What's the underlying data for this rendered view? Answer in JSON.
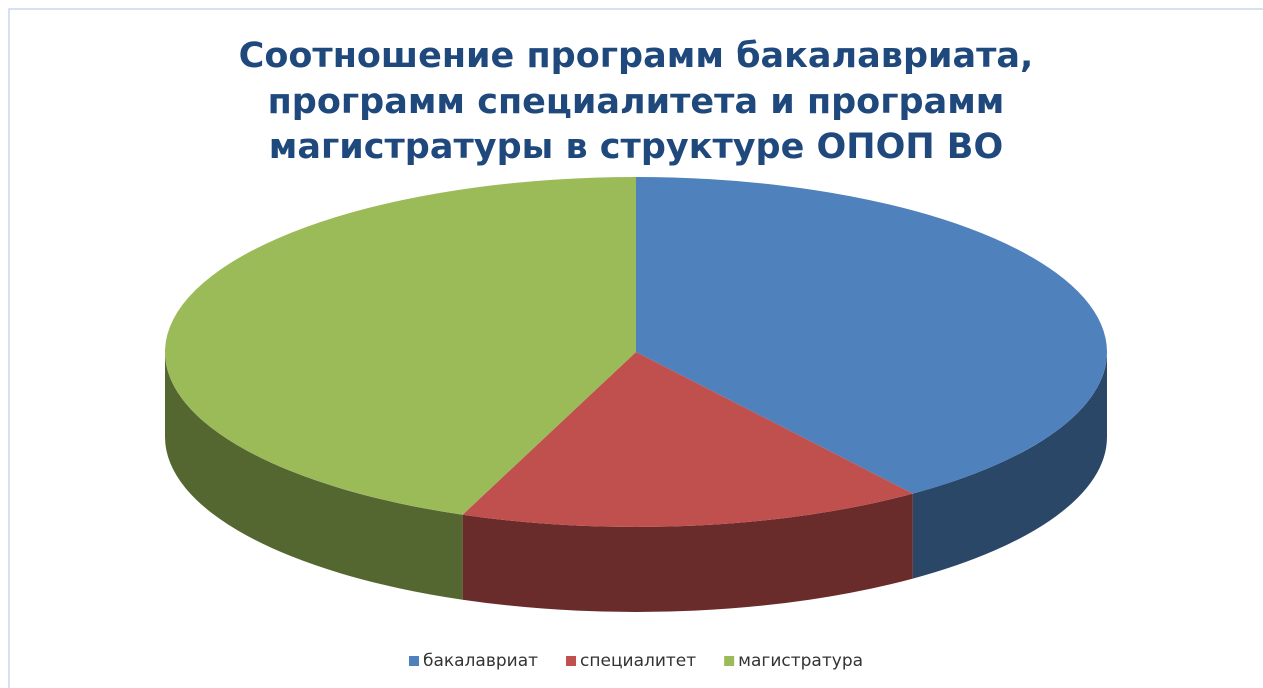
{
  "chart_data": {
    "type": "pie",
    "title": [
      "Соотношение программ бакалавриата,",
      "программ специалитета и программ",
      "магистратуры в структуре ОПОП ВО"
    ],
    "categories": [
      "бакалавриат",
      "специалитет",
      "магистратура"
    ],
    "values": [
      40,
      16,
      44
    ],
    "colors": [
      "#4f81bd",
      "#c0504d",
      "#9bbb59"
    ],
    "legend": "bottom"
  }
}
